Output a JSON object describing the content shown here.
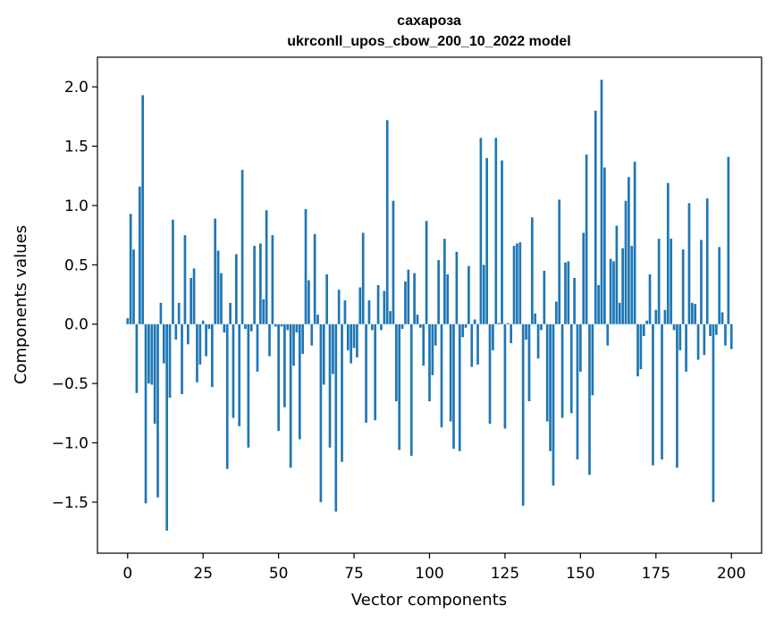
{
  "chart_data": {
    "type": "bar",
    "title": "сахароза",
    "subtitle": "ukrconll_upos_cbow_200_10_2022 model",
    "xlabel": "Vector components",
    "ylabel": "Components values",
    "xlim": [
      -10,
      210
    ],
    "ylim": [
      -1.93,
      2.25
    ],
    "xticks": [
      0,
      25,
      50,
      75,
      100,
      125,
      150,
      175,
      200
    ],
    "yticks": [
      -1.5,
      -1.0,
      -0.5,
      0.0,
      0.5,
      1.0,
      1.5,
      2.0
    ],
    "bar_color": "#1f77b4",
    "grid": false,
    "values": [
      0.05,
      0.93,
      0.63,
      -0.58,
      1.16,
      1.93,
      -1.51,
      -0.5,
      -0.51,
      -0.84,
      -1.46,
      0.18,
      -0.33,
      -1.74,
      -0.62,
      0.88,
      -0.13,
      0.18,
      -0.59,
      0.75,
      -0.17,
      0.39,
      0.47,
      -0.49,
      -0.34,
      0.03,
      -0.27,
      -0.04,
      -0.53,
      0.89,
      0.62,
      0.43,
      -0.07,
      -1.22,
      0.18,
      -0.79,
      0.59,
      -0.86,
      1.3,
      -0.04,
      -1.04,
      -0.06,
      0.66,
      -0.4,
      0.68,
      0.21,
      0.96,
      -0.27,
      0.75,
      -0.02,
      -0.9,
      -0.02,
      -0.7,
      -0.05,
      -1.21,
      -0.35,
      -0.07,
      -0.97,
      -0.25,
      0.97,
      0.37,
      -0.18,
      0.76,
      0.08,
      -1.5,
      -0.51,
      0.42,
      -1.04,
      -0.42,
      -1.58,
      0.29,
      -1.16,
      0.2,
      -0.22,
      -0.33,
      -0.2,
      -0.28,
      0.31,
      0.77,
      -0.83,
      0.2,
      -0.05,
      -0.81,
      0.33,
      -0.05,
      0.28,
      1.72,
      0.11,
      1.04,
      -0.65,
      -1.06,
      -0.04,
      0.36,
      0.46,
      -1.11,
      0.43,
      0.08,
      -0.03,
      -0.35,
      0.87,
      -0.65,
      -0.43,
      -0.18,
      0.54,
      -0.87,
      0.72,
      0.42,
      -0.82,
      -1.05,
      0.61,
      -1.07,
      -0.11,
      -0.03,
      0.49,
      -0.36,
      0.04,
      -0.34,
      1.57,
      0.5,
      1.4,
      -0.84,
      -0.22,
      1.57,
      0.01,
      1.38,
      -0.88,
      0.01,
      -0.16,
      0.66,
      0.68,
      0.69,
      -1.53,
      -0.13,
      -0.65,
      0.9,
      0.09,
      -0.29,
      -0.05,
      0.45,
      -0.82,
      -1.07,
      -1.36,
      0.19,
      1.05,
      -0.79,
      0.52,
      0.53,
      -0.75,
      0.39,
      -1.14,
      -0.4,
      0.77,
      1.43,
      -1.27,
      -0.6,
      1.8,
      0.33,
      2.06,
      1.32,
      -0.18,
      0.55,
      0.53,
      0.83,
      0.18,
      0.64,
      1.04,
      1.24,
      0.66,
      1.37,
      -0.44,
      -0.38,
      -0.1,
      0.03,
      0.42,
      -1.19,
      0.12,
      0.72,
      -1.14,
      0.12,
      1.19,
      0.72,
      -0.05,
      -1.21,
      -0.22,
      0.63,
      -0.4,
      1.02,
      0.18,
      0.17,
      -0.3,
      0.71,
      -0.26,
      1.06,
      -0.1,
      -1.5,
      -0.09,
      0.65,
      0.1,
      -0.18,
      1.41,
      -0.21
    ]
  }
}
